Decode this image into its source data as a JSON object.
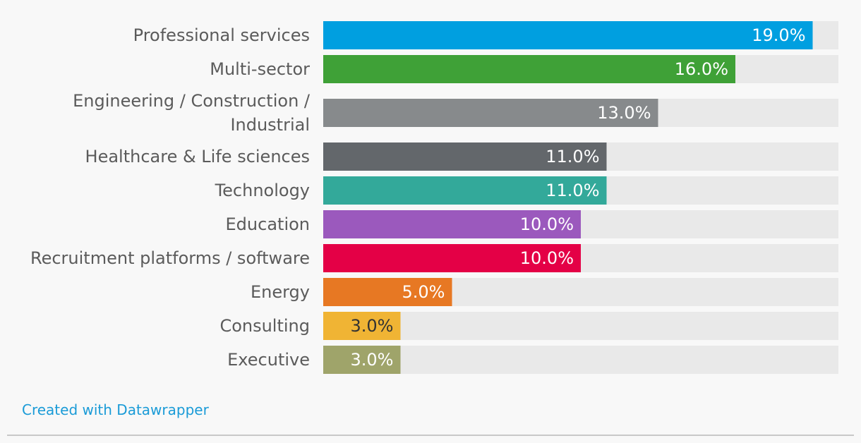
{
  "chart_data": {
    "type": "bar",
    "orientation": "horizontal",
    "xlim": [
      0,
      20
    ],
    "value_suffix": "%",
    "categories": [
      [
        "Professional services"
      ],
      [
        "Multi-sector"
      ],
      [
        "Engineering / Construction /",
        "Industrial"
      ],
      [
        "Healthcare & Life sciences"
      ],
      [
        "Technology"
      ],
      [
        "Education"
      ],
      [
        "Recruitment platforms / software"
      ],
      [
        "Energy"
      ],
      [
        "Consulting"
      ],
      [
        "Executive"
      ]
    ],
    "values": [
      19.0,
      16.0,
      13.0,
      11.0,
      11.0,
      10.0,
      10.0,
      5.0,
      3.0,
      3.0
    ],
    "value_labels": [
      "19.0%",
      "16.0%",
      "13.0%",
      "11.0%",
      "11.0%",
      "10.0%",
      "10.0%",
      "5.0%",
      "3.0%",
      "3.0%"
    ],
    "colors": [
      "#009fe0",
      "#3fa137",
      "#878a8c",
      "#63676b",
      "#33a99a",
      "#9b59bd",
      "#e40046",
      "#e77823",
      "#f0b434",
      "#9fa46a"
    ],
    "label_colors": [
      "#ffffff",
      "#ffffff",
      "#ffffff",
      "#ffffff",
      "#ffffff",
      "#ffffff",
      "#ffffff",
      "#ffffff",
      "#333333",
      "#ffffff"
    ],
    "track_color": "#e9e9e9",
    "legend": "none",
    "grid": false
  },
  "footer": {
    "credit": "Created with Datawrapper"
  }
}
